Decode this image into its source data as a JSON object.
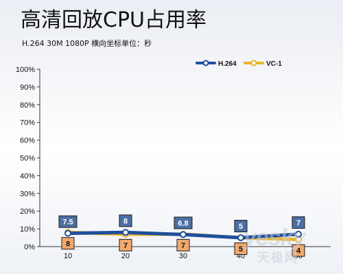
{
  "chart_data": {
    "type": "line",
    "title": "高清回放CPU占用率",
    "subtitle": "H.264 30M 1080P 横向坐标单位：秒",
    "x": [
      10,
      20,
      30,
      40,
      50
    ],
    "x_tick_labels": [
      "10",
      "20",
      "30",
      "40",
      "50"
    ],
    "ylim": [
      0,
      100
    ],
    "y_ticks": [
      0,
      10,
      20,
      30,
      40,
      50,
      60,
      70,
      80,
      90,
      100
    ],
    "y_tick_labels": [
      "0%",
      "10%",
      "20%",
      "30%",
      "40%",
      "50%",
      "60%",
      "70%",
      "80%",
      "90%",
      "100%"
    ],
    "grid": false,
    "legend_position": "top-right",
    "series": [
      {
        "name": "H.264",
        "values": [
          7.5,
          8,
          6.8,
          5,
          7
        ],
        "labels": [
          "7.5",
          "8",
          "6.8",
          "5",
          "7"
        ],
        "color": "#1f4e9c",
        "label_fill": "#4d6fa3",
        "label_text_color": "#ffffff"
      },
      {
        "name": "VC-1",
        "values": [
          8,
          7,
          7,
          5,
          4
        ],
        "labels": [
          "8",
          "7",
          "7",
          "5",
          "4"
        ],
        "color": "#e8b428",
        "label_fill": "#f0a86e",
        "label_text_color": "#111111"
      }
    ]
  },
  "watermark": {
    "text": "yesky",
    "text_cn": "天极网"
  }
}
